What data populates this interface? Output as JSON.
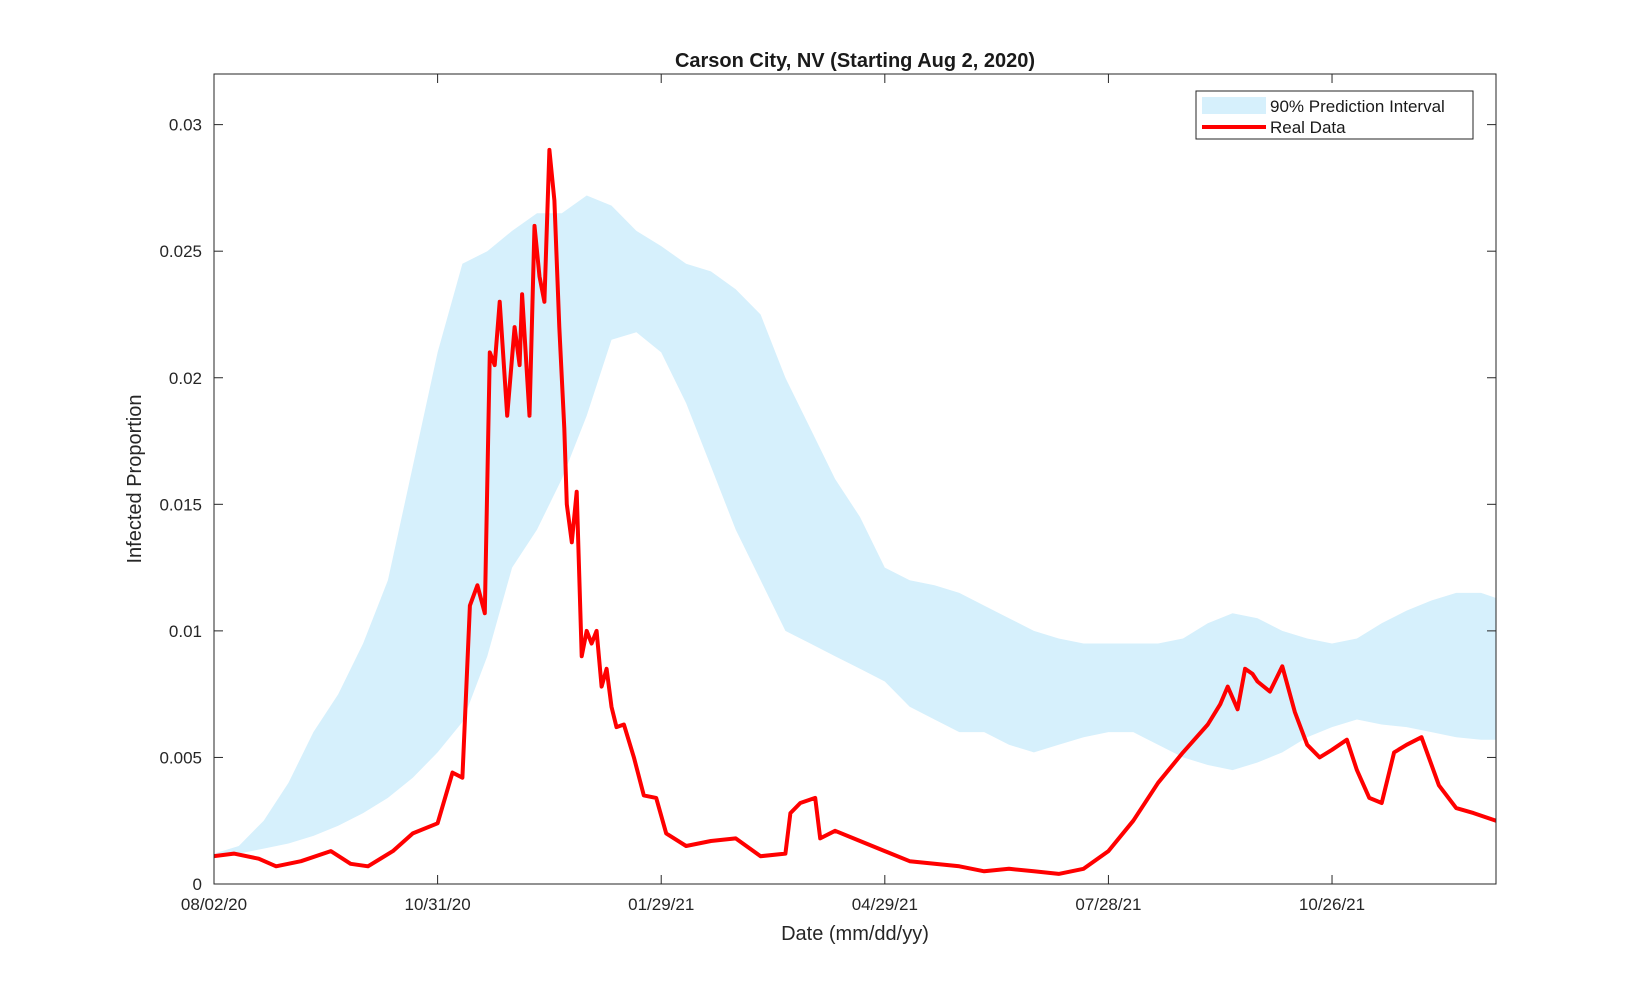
{
  "chart_data": {
    "type": "area",
    "title": "Carson City, NV (Starting Aug 2, 2020)",
    "xlabel": "Date (mm/dd/yy)",
    "ylabel": "Infected Proportion",
    "x_start": "2020-08-02",
    "x_end": "2021-12-31",
    "xlim": [
      "2020-08-02",
      "2021-12-31"
    ],
    "ylim": [
      0,
      0.032
    ],
    "xticks": [
      {
        "date": "2020-08-02",
        "label": "08/02/20"
      },
      {
        "date": "2020-10-31",
        "label": "10/31/20"
      },
      {
        "date": "2021-01-29",
        "label": "01/29/21"
      },
      {
        "date": "2021-04-29",
        "label": "04/29/21"
      },
      {
        "date": "2021-07-28",
        "label": "07/28/21"
      },
      {
        "date": "2021-10-26",
        "label": "10/26/21"
      }
    ],
    "yticks": [
      {
        "value": 0,
        "label": "0"
      },
      {
        "value": 0.005,
        "label": "0.005"
      },
      {
        "value": 0.01,
        "label": "0.01"
      },
      {
        "value": 0.015,
        "label": "0.015"
      },
      {
        "value": 0.02,
        "label": "0.02"
      },
      {
        "value": 0.025,
        "label": "0.025"
      },
      {
        "value": 0.03,
        "label": "0.03"
      }
    ],
    "grid": false,
    "legend_position": "top-right",
    "series": [
      {
        "name": "90% Prediction Interval",
        "kind": "band",
        "color": "#d6f0fc",
        "x": [
          "2020-08-02",
          "2020-08-12",
          "2020-08-22",
          "2020-09-01",
          "2020-09-11",
          "2020-09-21",
          "2020-10-01",
          "2020-10-11",
          "2020-10-21",
          "2020-10-31",
          "2020-11-10",
          "2020-11-20",
          "2020-11-30",
          "2020-12-10",
          "2020-12-20",
          "2020-12-30",
          "2021-01-09",
          "2021-01-19",
          "2021-01-29",
          "2021-02-08",
          "2021-02-18",
          "2021-02-28",
          "2021-03-10",
          "2021-03-20",
          "2021-03-30",
          "2021-04-09",
          "2021-04-19",
          "2021-04-29",
          "2021-05-09",
          "2021-05-19",
          "2021-05-29",
          "2021-06-08",
          "2021-06-18",
          "2021-06-28",
          "2021-07-08",
          "2021-07-18",
          "2021-07-28",
          "2021-08-07",
          "2021-08-17",
          "2021-08-27",
          "2021-09-06",
          "2021-09-16",
          "2021-09-26",
          "2021-10-06",
          "2021-10-16",
          "2021-10-26",
          "2021-11-05",
          "2021-11-15",
          "2021-11-25",
          "2021-12-05",
          "2021-12-15",
          "2021-12-25",
          "2021-12-31"
        ],
        "lower": [
          0.0012,
          0.0012,
          0.0014,
          0.0016,
          0.0019,
          0.0023,
          0.0028,
          0.0034,
          0.0042,
          0.0052,
          0.0064,
          0.009,
          0.0125,
          0.014,
          0.016,
          0.0185,
          0.0215,
          0.0218,
          0.021,
          0.019,
          0.0165,
          0.014,
          0.012,
          0.01,
          0.0095,
          0.009,
          0.0085,
          0.008,
          0.007,
          0.0065,
          0.006,
          0.006,
          0.0055,
          0.0052,
          0.0055,
          0.0058,
          0.006,
          0.006,
          0.0055,
          0.005,
          0.0047,
          0.0045,
          0.0048,
          0.0052,
          0.0058,
          0.0062,
          0.0065,
          0.0063,
          0.0062,
          0.006,
          0.0058,
          0.0057,
          0.0057
        ],
        "upper": [
          0.0012,
          0.0015,
          0.0025,
          0.004,
          0.006,
          0.0075,
          0.0095,
          0.012,
          0.0165,
          0.021,
          0.0245,
          0.025,
          0.0258,
          0.0265,
          0.0265,
          0.0272,
          0.0268,
          0.0258,
          0.0252,
          0.0245,
          0.0242,
          0.0235,
          0.0225,
          0.02,
          0.018,
          0.016,
          0.0145,
          0.0125,
          0.012,
          0.0118,
          0.0115,
          0.011,
          0.0105,
          0.01,
          0.0097,
          0.0095,
          0.0095,
          0.0095,
          0.0095,
          0.0097,
          0.0103,
          0.0107,
          0.0105,
          0.01,
          0.0097,
          0.0095,
          0.0097,
          0.0103,
          0.0108,
          0.0112,
          0.0115,
          0.0115,
          0.0113
        ]
      },
      {
        "name": "Real Data",
        "kind": "line",
        "color": "#ff0000",
        "x": [
          "2020-08-02",
          "2020-08-10",
          "2020-08-20",
          "2020-08-27",
          "2020-09-06",
          "2020-09-18",
          "2020-09-26",
          "2020-10-03",
          "2020-10-13",
          "2020-10-21",
          "2020-10-31",
          "2020-11-06",
          "2020-11-10",
          "2020-11-13",
          "2020-11-16",
          "2020-11-19",
          "2020-11-21",
          "2020-11-23",
          "2020-11-25",
          "2020-11-28",
          "2020-12-01",
          "2020-12-03",
          "2020-12-04",
          "2020-12-07",
          "2020-12-09",
          "2020-12-11",
          "2020-12-13",
          "2020-12-15",
          "2020-12-17",
          "2020-12-19",
          "2020-12-21",
          "2020-12-22",
          "2020-12-24",
          "2020-12-26",
          "2020-12-28",
          "2020-12-30",
          "2021-01-01",
          "2021-01-03",
          "2021-01-05",
          "2021-01-07",
          "2021-01-09",
          "2021-01-11",
          "2021-01-14",
          "2021-01-18",
          "2021-01-22",
          "2021-01-27",
          "2021-01-31",
          "2021-02-08",
          "2021-02-18",
          "2021-02-28",
          "2021-03-10",
          "2021-03-20",
          "2021-03-22",
          "2021-03-26",
          "2021-04-01",
          "2021-04-03",
          "2021-04-09",
          "2021-04-19",
          "2021-04-29",
          "2021-05-09",
          "2021-05-19",
          "2021-05-29",
          "2021-06-08",
          "2021-06-18",
          "2021-06-28",
          "2021-07-08",
          "2021-07-18",
          "2021-07-28",
          "2021-08-07",
          "2021-08-17",
          "2021-08-27",
          "2021-09-06",
          "2021-09-11",
          "2021-09-14",
          "2021-09-18",
          "2021-09-21",
          "2021-09-24",
          "2021-09-26",
          "2021-10-01",
          "2021-10-06",
          "2021-10-11",
          "2021-10-16",
          "2021-10-21",
          "2021-10-26",
          "2021-11-01",
          "2021-11-05",
          "2021-11-10",
          "2021-11-15",
          "2021-11-20",
          "2021-11-25",
          "2021-12-01",
          "2021-12-08",
          "2021-12-15",
          "2021-12-22",
          "2021-12-31"
        ],
        "values": [
          0.0011,
          0.0012,
          0.001,
          0.0007,
          0.0009,
          0.0013,
          0.0008,
          0.0007,
          0.0013,
          0.002,
          0.0024,
          0.0044,
          0.0042,
          0.011,
          0.0118,
          0.0107,
          0.021,
          0.0205,
          0.023,
          0.0185,
          0.022,
          0.0205,
          0.0233,
          0.0185,
          0.026,
          0.024,
          0.023,
          0.029,
          0.027,
          0.022,
          0.018,
          0.015,
          0.0135,
          0.0155,
          0.009,
          0.01,
          0.0095,
          0.01,
          0.0078,
          0.0085,
          0.007,
          0.0062,
          0.0063,
          0.005,
          0.0035,
          0.0034,
          0.002,
          0.0015,
          0.0017,
          0.0018,
          0.0011,
          0.0012,
          0.0028,
          0.0032,
          0.0034,
          0.0018,
          0.0021,
          0.0017,
          0.0013,
          0.0009,
          0.0008,
          0.0007,
          0.0005,
          0.0006,
          0.0005,
          0.0004,
          0.0006,
          0.0013,
          0.0025,
          0.004,
          0.0052,
          0.0063,
          0.0071,
          0.0078,
          0.0069,
          0.0085,
          0.0083,
          0.008,
          0.0076,
          0.0086,
          0.0068,
          0.0055,
          0.005,
          0.0053,
          0.0057,
          0.0045,
          0.0034,
          0.0032,
          0.0052,
          0.0055,
          0.0058,
          0.0039,
          0.003,
          0.0028,
          0.0025
        ]
      }
    ]
  }
}
